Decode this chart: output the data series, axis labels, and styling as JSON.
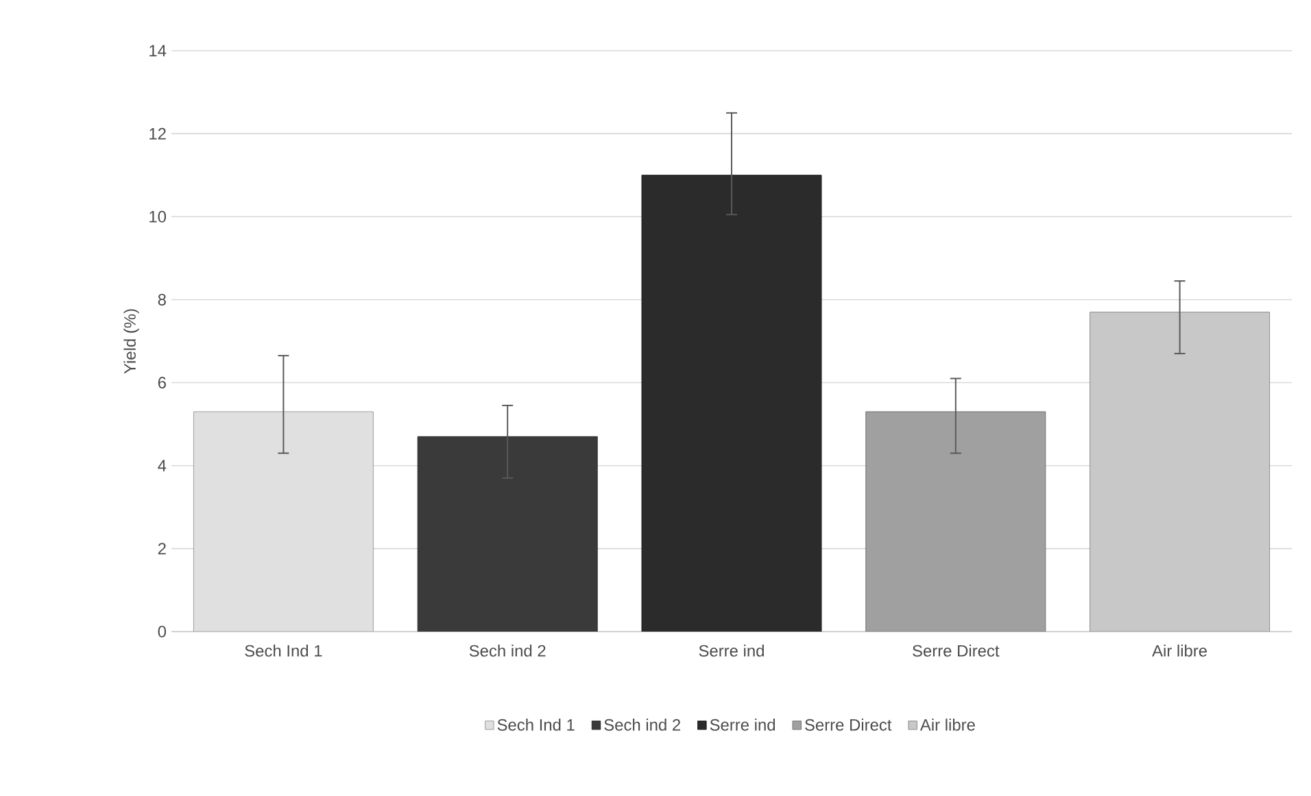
{
  "chart_data": {
    "type": "bar",
    "ylabel": "Yield (%)",
    "categories": [
      "Sech Ind 1",
      "Sech ind 2",
      "Serre ind",
      "Serre Direct",
      "Air libre"
    ],
    "series": [
      {
        "name": "Sech Ind 1",
        "color": "#e0e0e0",
        "values": [
          5.3,
          null,
          null,
          null,
          null
        ],
        "errors": [
          [
            4.3,
            6.65
          ],
          null,
          null,
          null,
          null
        ]
      },
      {
        "name": "Sech ind 2",
        "color": "#3a3a3a",
        "values": [
          null,
          4.7,
          null,
          null,
          null
        ],
        "errors": [
          null,
          [
            3.7,
            5.45
          ],
          null,
          null,
          null
        ]
      },
      {
        "name": "Serre ind",
        "color": "#2b2b2b",
        "values": [
          null,
          null,
          11.0,
          null,
          null
        ],
        "errors": [
          null,
          null,
          [
            10.05,
            12.5
          ],
          null,
          null
        ]
      },
      {
        "name": "Serre Direct",
        "color": "#a0a0a0",
        "values": [
          null,
          null,
          null,
          5.3,
          null
        ],
        "errors": [
          null,
          null,
          null,
          [
            4.3,
            6.1
          ],
          null
        ]
      },
      {
        "name": "Air libre",
        "color": "#c8c8c8",
        "values": [
          null,
          null,
          null,
          null,
          7.7
        ],
        "errors": [
          null,
          null,
          null,
          null,
          [
            6.7,
            8.45
          ]
        ]
      }
    ],
    "ylim": [
      0,
      14
    ],
    "yticks": [
      0,
      2,
      4,
      6,
      8,
      10,
      12,
      14
    ],
    "grid": "y",
    "legend": "bottom"
  }
}
